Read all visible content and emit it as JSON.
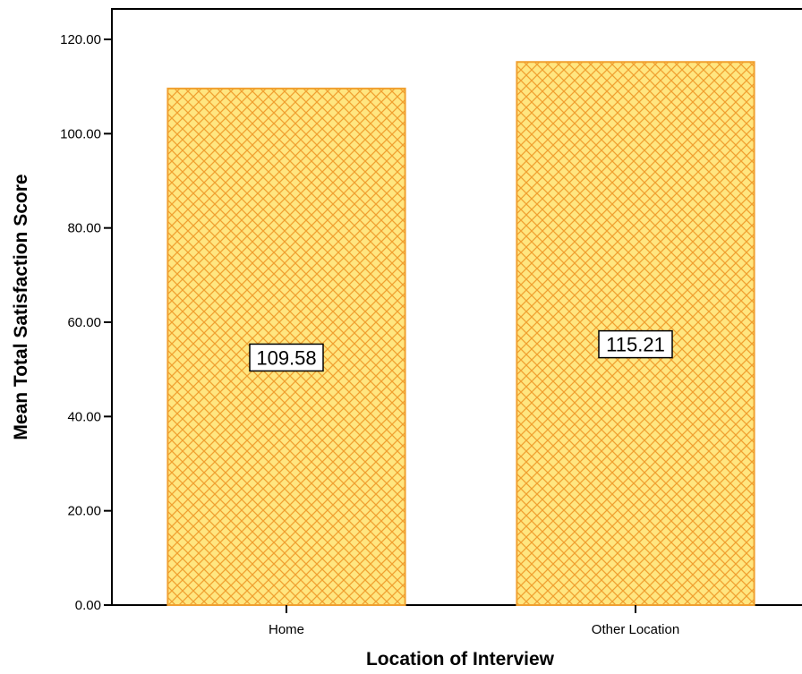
{
  "chart_data": {
    "type": "bar",
    "categories": [
      "Home",
      "Other Location"
    ],
    "values": [
      109.58,
      115.21
    ],
    "data_labels": [
      "109.58",
      "115.21"
    ],
    "xlabel": "Location of Interview",
    "ylabel": "Mean Total Satisfaction Score",
    "ylim": [
      0,
      120
    ],
    "yticks": [
      "0.00",
      "20.00",
      "40.00",
      "60.00",
      "80.00",
      "100.00",
      "120.00"
    ],
    "grid": false,
    "legend": "none",
    "colors": {
      "bar_fill": "#ffe680",
      "bar_hatch": "#f0a030",
      "bar_edge": "#f0a030"
    }
  }
}
